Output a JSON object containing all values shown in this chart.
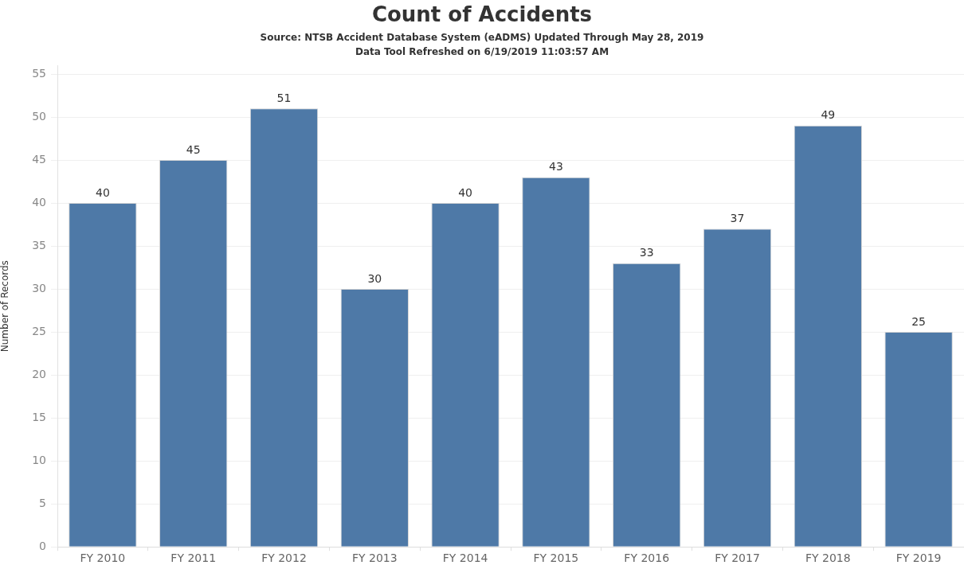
{
  "chart_data": {
    "type": "bar",
    "title": "Count of Accidents",
    "subtitle": "Source: NTSB Accident Database System (eADMS) Updated Through May 28, 2019\nData Tool Refreshed on 6/19/2019 11:03:57 AM",
    "ylabel": "Number of Records",
    "categories": [
      "FY 2010",
      "FY 2011",
      "FY 2012",
      "FY 2013",
      "FY 2014",
      "FY 2015",
      "FY 2016",
      "FY 2017",
      "FY 2018",
      "FY 2019"
    ],
    "values": [
      40,
      45,
      51,
      30,
      40,
      43,
      33,
      37,
      49,
      25
    ],
    "color": "#4e79a7",
    "ylim": [
      0,
      56
    ],
    "yticks": [
      0,
      5,
      10,
      15,
      20,
      25,
      30,
      35,
      40,
      45,
      50,
      55
    ],
    "grid": "y",
    "data_labels": true
  }
}
